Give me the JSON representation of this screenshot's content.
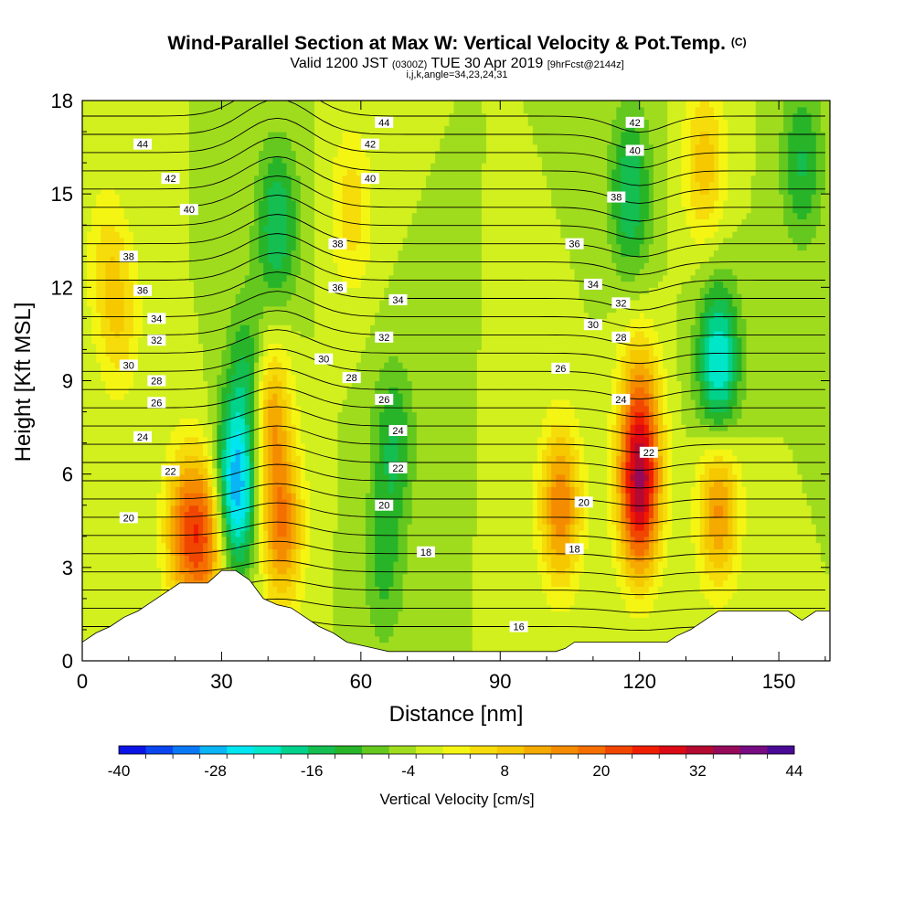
{
  "title": {
    "main": "Wind-Parallel Section at Max W: Vertical Velocity & Pot.Temp.",
    "copyright": "(C)",
    "valid_prefix": "Valid 1200 JST",
    "valid_utc": "(0300Z)",
    "valid_date": "TUE 30 Apr 2019",
    "forecast": "[9hrFcst@2144z]",
    "indices": "i,j,k,angle=34,23,24,31"
  },
  "chart_data": {
    "type": "contour",
    "xlabel": "Distance [nm]",
    "ylabel": "Height [Kft MSL]",
    "xlim": [
      0,
      161
    ],
    "ylim": [
      0,
      18
    ],
    "xticks": [
      "0",
      "30",
      "60",
      "90",
      "120",
      "150"
    ],
    "xtick_values": [
      0,
      30,
      60,
      90,
      120,
      150
    ],
    "yticks": [
      "0",
      "3",
      "6",
      "9",
      "12",
      "15",
      "18"
    ],
    "ytick_values": [
      0,
      3,
      6,
      9,
      12,
      15,
      18
    ],
    "colorbar": {
      "title": "Vertical Velocity [cm/s]",
      "ticks": [
        "-40",
        "-28",
        "-16",
        "-4",
        "8",
        "20",
        "32",
        "44"
      ],
      "tick_values": [
        -40,
        -28,
        -16,
        -4,
        8,
        20,
        32,
        44
      ],
      "step": 4,
      "colors": [
        "#0a14e6",
        "#0a46f0",
        "#0a78f5",
        "#0ab4f5",
        "#00e6f0",
        "#00e6c8",
        "#00d28c",
        "#14be50",
        "#28b428",
        "#64c81e",
        "#a0dc1e",
        "#d2f01e",
        "#f5f514",
        "#f5dc0a",
        "#f5c800",
        "#f5aa00",
        "#f58c00",
        "#f56e00",
        "#f04600",
        "#f01e00",
        "#dc0a14",
        "#b40a32",
        "#960a5a",
        "#780a82",
        "#4b0a96"
      ]
    },
    "velocity_field": {
      "background_value": 4,
      "features": [
        {
          "x": 8,
          "y": 11,
          "value": 16
        },
        {
          "x": 5,
          "y": 13,
          "value": 12
        },
        {
          "x": 22,
          "y": 4.2,
          "value": 28
        },
        {
          "x": 27,
          "y": 4.0,
          "value": 30
        },
        {
          "x": 33,
          "y": 5.5,
          "value": -32
        },
        {
          "x": 36,
          "y": 9,
          "value": -14
        },
        {
          "x": 40,
          "y": 8,
          "value": 28
        },
        {
          "x": 43,
          "y": 4.3,
          "value": 30
        },
        {
          "x": 42,
          "y": 14,
          "value": -14
        },
        {
          "x": 58,
          "y": 14.5,
          "value": 16
        },
        {
          "x": 67,
          "y": 7,
          "value": -10
        },
        {
          "x": 65,
          "y": 3,
          "value": -6
        },
        {
          "x": 103,
          "y": 5,
          "value": 30
        },
        {
          "x": 120,
          "y": 5.2,
          "value": 44
        },
        {
          "x": 120,
          "y": 8,
          "value": 28
        },
        {
          "x": 118,
          "y": 15,
          "value": -14
        },
        {
          "x": 134,
          "y": 16,
          "value": 20
        },
        {
          "x": 137,
          "y": 9.5,
          "value": -24
        },
        {
          "x": 137,
          "y": 5,
          "value": 28
        },
        {
          "x": 155,
          "y": 16,
          "value": -10
        }
      ]
    },
    "potential_temperature": {
      "levels": [
        16,
        17,
        18,
        19,
        20,
        21,
        22,
        23,
        24,
        25,
        26,
        27,
        28,
        29,
        30,
        31,
        32,
        33,
        34,
        35,
        36,
        37,
        38,
        39,
        40,
        41,
        42,
        43,
        44
      ],
      "labels": [
        {
          "text": "44",
          "x": 13,
          "y": 16.6
        },
        {
          "text": "42",
          "x": 19,
          "y": 15.5
        },
        {
          "text": "40",
          "x": 23,
          "y": 14.5
        },
        {
          "text": "38",
          "x": 10,
          "y": 13.0
        },
        {
          "text": "36",
          "x": 13,
          "y": 11.9
        },
        {
          "text": "34",
          "x": 16,
          "y": 11.0
        },
        {
          "text": "32",
          "x": 16,
          "y": 10.3
        },
        {
          "text": "30",
          "x": 10,
          "y": 9.5
        },
        {
          "text": "28",
          "x": 16,
          "y": 9.0
        },
        {
          "text": "26",
          "x": 16,
          "y": 8.3
        },
        {
          "text": "24",
          "x": 13,
          "y": 7.2
        },
        {
          "text": "22",
          "x": 19,
          "y": 6.1
        },
        {
          "text": "20",
          "x": 10,
          "y": 4.6
        },
        {
          "text": "44",
          "x": 65,
          "y": 17.3
        },
        {
          "text": "42",
          "x": 62,
          "y": 16.6
        },
        {
          "text": "40",
          "x": 62,
          "y": 15.5
        },
        {
          "text": "38",
          "x": 55,
          "y": 13.4
        },
        {
          "text": "36",
          "x": 55,
          "y": 12.0
        },
        {
          "text": "34",
          "x": 68,
          "y": 11.6
        },
        {
          "text": "32",
          "x": 65,
          "y": 10.4
        },
        {
          "text": "30",
          "x": 52,
          "y": 9.7
        },
        {
          "text": "28",
          "x": 58,
          "y": 9.1
        },
        {
          "text": "26",
          "x": 65,
          "y": 8.4
        },
        {
          "text": "24",
          "x": 68,
          "y": 7.4
        },
        {
          "text": "22",
          "x": 68,
          "y": 6.2
        },
        {
          "text": "20",
          "x": 65,
          "y": 5.0
        },
        {
          "text": "18",
          "x": 74,
          "y": 3.5
        },
        {
          "text": "16",
          "x": 94,
          "y": 1.1
        },
        {
          "text": "42",
          "x": 119,
          "y": 17.3
        },
        {
          "text": "40",
          "x": 119,
          "y": 16.4
        },
        {
          "text": "38",
          "x": 115,
          "y": 14.9
        },
        {
          "text": "36",
          "x": 106,
          "y": 13.4
        },
        {
          "text": "34",
          "x": 110,
          "y": 12.1
        },
        {
          "text": "32",
          "x": 116,
          "y": 11.5
        },
        {
          "text": "30",
          "x": 110,
          "y": 10.8
        },
        {
          "text": "28",
          "x": 116,
          "y": 10.4
        },
        {
          "text": "26",
          "x": 103,
          "y": 9.4
        },
        {
          "text": "24",
          "x": 116,
          "y": 8.4
        },
        {
          "text": "22",
          "x": 122,
          "y": 6.7
        },
        {
          "text": "20",
          "x": 108,
          "y": 5.1
        },
        {
          "text": "18",
          "x": 106,
          "y": 3.6
        }
      ]
    },
    "terrain": [
      [
        0,
        0.6
      ],
      [
        3,
        0.9
      ],
      [
        6,
        1.1
      ],
      [
        9,
        1.4
      ],
      [
        12,
        1.6
      ],
      [
        15,
        1.9
      ],
      [
        18,
        2.2
      ],
      [
        21,
        2.5
      ],
      [
        24,
        2.5
      ],
      [
        27,
        2.5
      ],
      [
        30,
        2.9
      ],
      [
        33,
        2.9
      ],
      [
        36,
        2.6
      ],
      [
        39,
        2.0
      ],
      [
        42,
        1.8
      ],
      [
        45,
        1.7
      ],
      [
        48,
        1.4
      ],
      [
        51,
        1.1
      ],
      [
        54,
        0.9
      ],
      [
        57,
        0.6
      ],
      [
        60,
        0.5
      ],
      [
        63,
        0.4
      ],
      [
        66,
        0.3
      ],
      [
        75,
        0.3
      ],
      [
        90,
        0.3
      ],
      [
        102,
        0.3
      ],
      [
        104,
        0.4
      ],
      [
        106,
        0.6
      ],
      [
        126,
        0.6
      ],
      [
        128,
        0.8
      ],
      [
        131,
        1.0
      ],
      [
        134,
        1.3
      ],
      [
        137,
        1.6
      ],
      [
        152,
        1.6
      ],
      [
        155,
        1.3
      ],
      [
        158,
        1.6
      ],
      [
        161,
        1.6
      ]
    ]
  }
}
